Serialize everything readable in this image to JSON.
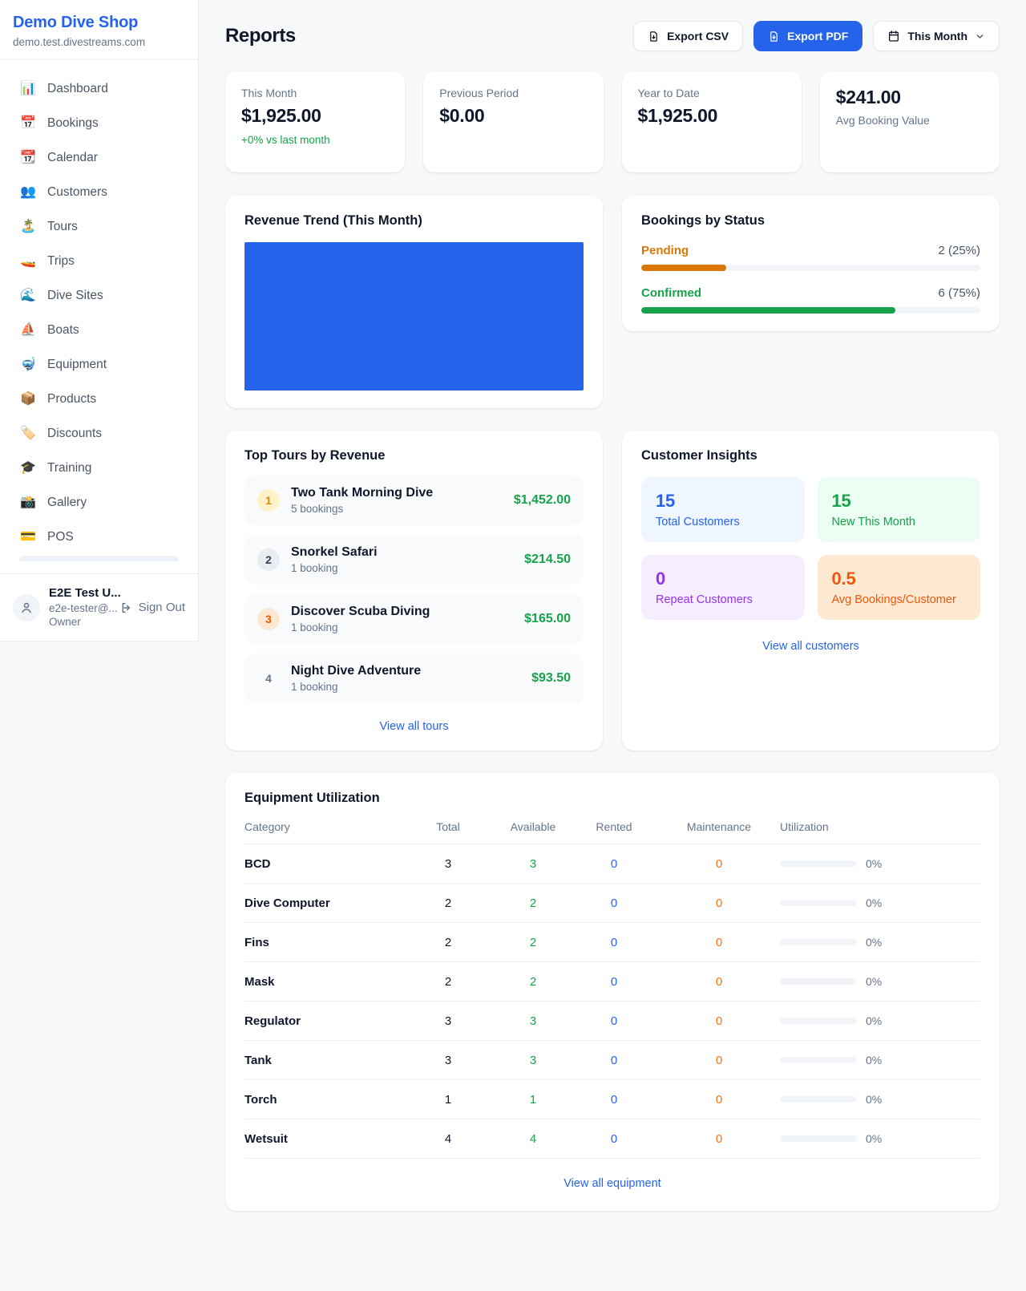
{
  "colors": {
    "accent_blue": "#2563eb",
    "green": "#16a34a",
    "amber": "#d97706",
    "orange": "#f97316",
    "deep_orange": "#ea580c",
    "purple": "#9333ea",
    "page_background": "#f7f8fa"
  },
  "sidebar": {
    "brand": {
      "name": "Demo Dive Shop",
      "domain": "demo.test.divestreams.com"
    },
    "items": [
      {
        "label": "Dashboard",
        "icon": "📊",
        "icon_name": "bar-chart-icon"
      },
      {
        "label": "Bookings",
        "icon": "📅",
        "icon_name": "calendar-icon"
      },
      {
        "label": "Calendar",
        "icon": "📆",
        "icon_name": "tear-off-calendar-icon"
      },
      {
        "label": "Customers",
        "icon": "👥",
        "icon_name": "people-icon"
      },
      {
        "label": "Tours",
        "icon": "🏝️",
        "icon_name": "island-icon"
      },
      {
        "label": "Trips",
        "icon": "🚤",
        "icon_name": "speedboat-icon"
      },
      {
        "label": "Dive Sites",
        "icon": "🌊",
        "icon_name": "wave-icon"
      },
      {
        "label": "Boats",
        "icon": "⛵",
        "icon_name": "sailboat-icon"
      },
      {
        "label": "Equipment",
        "icon": "🤿",
        "icon_name": "diving-mask-icon"
      },
      {
        "label": "Products",
        "icon": "📦",
        "icon_name": "package-icon"
      },
      {
        "label": "Discounts",
        "icon": "🏷️",
        "icon_name": "tag-icon"
      },
      {
        "label": "Training",
        "icon": "🎓",
        "icon_name": "graduation-cap-icon"
      },
      {
        "label": "Gallery",
        "icon": "📸",
        "icon_name": "camera-icon"
      },
      {
        "label": "POS",
        "icon": "💳",
        "icon_name": "credit-card-icon"
      }
    ],
    "user": {
      "name": "E2E Test U...",
      "email": "e2e-tester@...",
      "role": "Owner",
      "sign_out_label": "Sign Out"
    }
  },
  "header": {
    "title": "Reports",
    "export_csv_label": "Export CSV",
    "export_pdf_label": "Export PDF",
    "period_selector_label": "This Month"
  },
  "stats": {
    "this_month": {
      "label": "This Month",
      "value": "$1,925.00",
      "delta": "+0% vs last month"
    },
    "previous_period": {
      "label": "Previous Period",
      "value": "$0.00"
    },
    "year_to_date": {
      "label": "Year to Date",
      "value": "$1,925.00"
    },
    "avg_booking": {
      "value": "$241.00",
      "label": "Avg Booking Value"
    }
  },
  "revenue_trend": {
    "title": "Revenue Trend (This Month)",
    "bar_color": "#2563eb"
  },
  "bookings_by_status": {
    "title": "Bookings by Status",
    "rows": [
      {
        "label": "Pending",
        "count_label": "2 (25%)",
        "pct": 25,
        "color": "#d97706"
      },
      {
        "label": "Confirmed",
        "count_label": "6 (75%)",
        "pct": 75,
        "color": "#16a34a"
      }
    ]
  },
  "chart_data": [
    {
      "type": "bar",
      "title": "Revenue Trend (This Month)",
      "categories": [
        "This Month"
      ],
      "values": [
        1925
      ],
      "xlabel": "",
      "ylabel": "",
      "note": "single full-width solid blue bar, no axes or tick labels visible"
    },
    {
      "type": "bar",
      "title": "Bookings by Status",
      "categories": [
        "Pending",
        "Confirmed"
      ],
      "values": [
        2,
        6
      ],
      "percentages": [
        25,
        75
      ],
      "labels": [
        "2 (25%)",
        "6 (75%)"
      ]
    }
  ],
  "top_tours": {
    "title": "Top Tours by Revenue",
    "rows": [
      {
        "rank": "1",
        "name": "Two Tank Morning Dive",
        "bookings": "5 bookings",
        "amount": "$1,452.00"
      },
      {
        "rank": "2",
        "name": "Snorkel Safari",
        "bookings": "1 booking",
        "amount": "$214.50"
      },
      {
        "rank": "3",
        "name": "Discover Scuba Diving",
        "bookings": "1 booking",
        "amount": "$165.00"
      },
      {
        "rank": "4",
        "name": "Night Dive Adventure",
        "bookings": "1 booking",
        "amount": "$93.50"
      }
    ],
    "view_all_label": "View all tours"
  },
  "customer_insights": {
    "title": "Customer Insights",
    "tiles": [
      {
        "value": "15",
        "label": "Total Customers"
      },
      {
        "value": "15",
        "label": "New This Month"
      },
      {
        "value": "0",
        "label": "Repeat Customers"
      },
      {
        "value": "0.5",
        "label": "Avg Bookings/Customer"
      }
    ],
    "view_all_label": "View all customers"
  },
  "equipment": {
    "title": "Equipment Utilization",
    "columns": [
      "Category",
      "Total",
      "Available",
      "Rented",
      "Maintenance",
      "Utilization"
    ],
    "rows": [
      {
        "category": "BCD",
        "total": "3",
        "available": "3",
        "rented": "0",
        "maintenance": "0",
        "utilization_pct": 0,
        "utilization_label": "0%"
      },
      {
        "category": "Dive Computer",
        "total": "2",
        "available": "2",
        "rented": "0",
        "maintenance": "0",
        "utilization_pct": 0,
        "utilization_label": "0%"
      },
      {
        "category": "Fins",
        "total": "2",
        "available": "2",
        "rented": "0",
        "maintenance": "0",
        "utilization_pct": 0,
        "utilization_label": "0%"
      },
      {
        "category": "Mask",
        "total": "2",
        "available": "2",
        "rented": "0",
        "maintenance": "0",
        "utilization_pct": 0,
        "utilization_label": "0%"
      },
      {
        "category": "Regulator",
        "total": "3",
        "available": "3",
        "rented": "0",
        "maintenance": "0",
        "utilization_pct": 0,
        "utilization_label": "0%"
      },
      {
        "category": "Tank",
        "total": "3",
        "available": "3",
        "rented": "0",
        "maintenance": "0",
        "utilization_pct": 0,
        "utilization_label": "0%"
      },
      {
        "category": "Torch",
        "total": "1",
        "available": "1",
        "rented": "0",
        "maintenance": "0",
        "utilization_pct": 0,
        "utilization_label": "0%"
      },
      {
        "category": "Wetsuit",
        "total": "4",
        "available": "4",
        "rented": "0",
        "maintenance": "0",
        "utilization_pct": 0,
        "utilization_label": "0%"
      }
    ],
    "view_all_label": "View all equipment"
  }
}
